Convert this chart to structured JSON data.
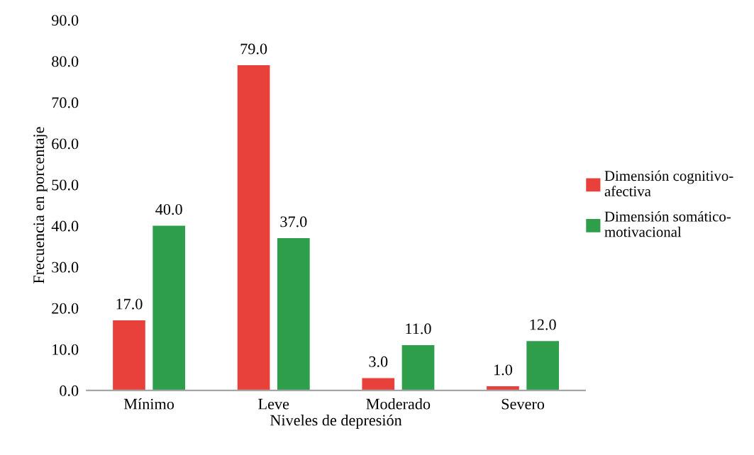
{
  "chart_data": {
    "type": "bar",
    "xlabel": "Niveles de depresión",
    "ylabel": "Frecuencia en porcentaje",
    "categories": [
      "Mínimo",
      "Leve",
      "Moderado",
      "Severo"
    ],
    "series": [
      {
        "name": "Dimensión cognitivo-\nafectiva",
        "color": "#e8413c",
        "values": [
          17,
          79,
          3,
          1
        ],
        "value_labels": [
          "17.0",
          "79.0",
          "3.0",
          "1.0"
        ]
      },
      {
        "name": "Dimensión somático-\nmotivacional",
        "color": "#2e9e4a",
        "values": [
          40,
          37,
          11,
          12
        ],
        "value_labels": [
          "40.0",
          "37.0",
          "11.0",
          "12.0"
        ]
      }
    ],
    "ylim": [
      0,
      90
    ],
    "yticks": [
      {
        "value": 0,
        "label": "0.0"
      },
      {
        "value": 10,
        "label": "10.0"
      },
      {
        "value": 20,
        "label": "20.0"
      },
      {
        "value": 30,
        "label": "30.0"
      },
      {
        "value": 40,
        "label": "40.0"
      },
      {
        "value": 50,
        "label": "50.0"
      },
      {
        "value": 60,
        "label": "60.0"
      },
      {
        "value": 70,
        "label": "70.0"
      },
      {
        "value": 80,
        "label": "80.0"
      },
      {
        "value": 90,
        "label": "90.0"
      }
    ],
    "grid": false,
    "legend": "right"
  }
}
